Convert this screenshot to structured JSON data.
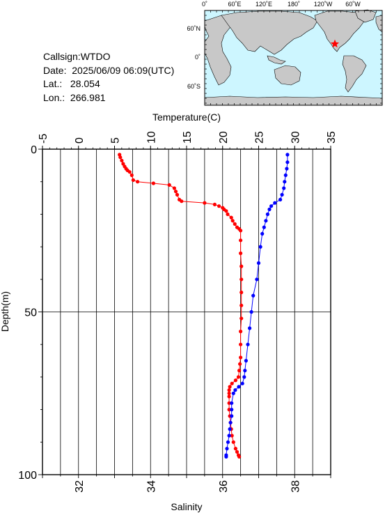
{
  "info": {
    "callsign": "Callsign:WTDO",
    "date": "Date:  2025/06/09 06:09(UTC)",
    "lat": "Lat.:   28.054",
    "lon": "Lon.:  266.981"
  },
  "map": {
    "lon_labels": [
      "0˚",
      "60˚E",
      "120˚E",
      "180˚",
      "120˚W",
      "60˚W"
    ],
    "lat_labels": [
      "60˚N",
      "0˚",
      "60˚S"
    ],
    "ocean_color": "#cdf6ff",
    "land_color": "#c8c8c8",
    "marker": "star",
    "marker_color": "#ff0000"
  },
  "chart_data": {
    "type": "scatter",
    "top_axis": {
      "label": "Temperature(C)",
      "range": [
        -5,
        35
      ],
      "ticks": [
        "-5",
        "0",
        "5",
        "10",
        "15",
        "20",
        "25",
        "30",
        "35"
      ]
    },
    "bottom_axis": {
      "label": "Salinity",
      "range": [
        31,
        39
      ],
      "ticks": [
        "32",
        "34",
        "36",
        "38"
      ]
    },
    "y_axis": {
      "label": "Depth(m)",
      "range": [
        0,
        100
      ],
      "inverted": true,
      "ticks": [
        "0",
        "50",
        "100"
      ]
    },
    "grid": true,
    "series": [
      {
        "id": "temperature",
        "axis": "top",
        "color": "#ff0000",
        "depth": [
          1.7,
          2.5,
          3.5,
          4.5,
          5.3,
          6.0,
          6.5,
          7.0,
          8.0,
          9.5,
          10.0,
          10.5,
          11.0,
          12.0,
          13.0,
          14.0,
          15.5,
          16.0,
          16.5,
          17.0,
          17.5,
          18.0,
          18.5,
          19.0,
          20.0,
          21.0,
          22.0,
          23.0,
          24.0,
          24.5,
          25.0,
          28.0,
          32.0,
          36.0,
          40.0,
          44.0,
          48.0,
          52.0,
          56.0,
          60.0,
          64.0,
          66.0,
          68.0,
          70.0,
          71.0,
          72.0,
          73.0,
          74.0,
          75.0,
          76.0,
          78.0,
          80.0,
          82.0,
          84.0,
          86.0,
          88.0,
          90.0,
          92.0,
          93.0,
          94.0,
          94.5
        ],
        "values": [
          5.7,
          5.8,
          6.0,
          6.2,
          6.4,
          6.6,
          6.8,
          7.1,
          7.4,
          7.6,
          8.2,
          10.4,
          12.6,
          13.3,
          13.5,
          13.7,
          14.0,
          14.3,
          17.5,
          18.9,
          19.5,
          20.0,
          20.2,
          20.5,
          20.7,
          21.2,
          21.4,
          21.7,
          22.0,
          22.3,
          22.5,
          22.5,
          22.5,
          22.6,
          22.6,
          22.6,
          22.6,
          22.6,
          22.5,
          22.5,
          22.5,
          22.4,
          22.3,
          22.2,
          21.8,
          21.3,
          21.0,
          20.9,
          20.9,
          20.9,
          20.9,
          20.9,
          21.0,
          21.1,
          21.2,
          21.3,
          21.5,
          21.8,
          22.0,
          22.2,
          22.3
        ]
      },
      {
        "id": "salinity",
        "axis": "bottom",
        "color": "#0000ff",
        "depth": [
          1.7,
          4.0,
          6.0,
          8.0,
          10.0,
          12.0,
          14.0,
          15.5,
          16.5,
          17.5,
          18.5,
          20.0,
          22.0,
          24.0,
          26.0,
          30.0,
          35.0,
          40.0,
          45.0,
          50.0,
          55.0,
          60.0,
          65.0,
          68.0,
          70.0,
          72.0,
          73.0,
          74.0,
          75.0,
          78.0,
          80.0,
          82.0,
          84.0,
          86.0,
          88.0,
          90.0,
          92.0,
          94.0,
          94.5
        ],
        "values": [
          37.8,
          37.8,
          37.78,
          37.75,
          37.72,
          37.7,
          37.65,
          37.6,
          37.45,
          37.35,
          37.3,
          37.25,
          37.2,
          37.15,
          37.1,
          37.05,
          37.0,
          36.95,
          36.85,
          36.8,
          36.75,
          36.7,
          36.65,
          36.62,
          36.6,
          36.55,
          36.45,
          36.35,
          36.3,
          36.25,
          36.25,
          36.25,
          36.22,
          36.2,
          36.18,
          36.15,
          36.12,
          36.1,
          36.1
        ]
      }
    ]
  }
}
